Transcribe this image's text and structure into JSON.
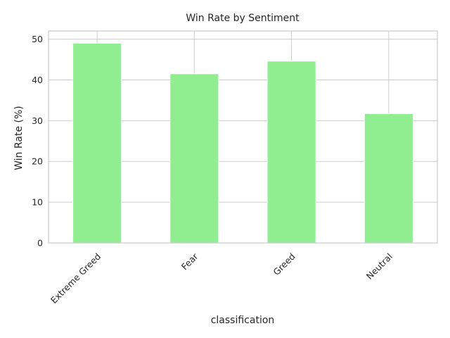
{
  "chart_data": {
    "type": "bar",
    "title": "Win Rate by Sentiment",
    "xlabel": "classification",
    "ylabel": "Win Rate (%)",
    "categories": [
      "Extreme Greed",
      "Fear",
      "Greed",
      "Neutral"
    ],
    "values": [
      49.0,
      41.5,
      44.6,
      31.7
    ],
    "ylim": [
      0,
      52
    ],
    "yticks": [
      0,
      10,
      20,
      30,
      40,
      50
    ],
    "grid": true,
    "bar_color": "#90ee90",
    "grid_color": "#cccccc",
    "frame_color": "#cccccc"
  }
}
